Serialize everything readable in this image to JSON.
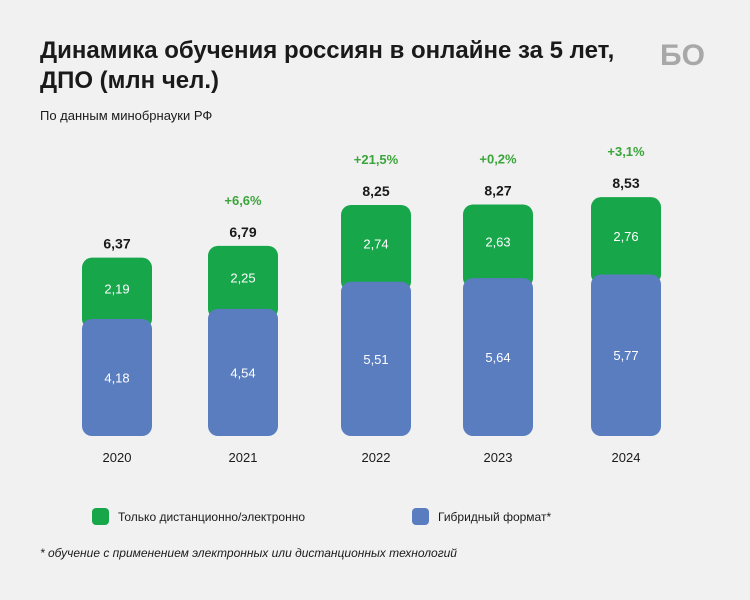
{
  "header": {
    "title": "Динамика обучения россиян в онлайне за 5 лет, ДПО (млн чел.)",
    "subtitle": "По данным минобрнауки РФ",
    "logo": "БО"
  },
  "footnote": "* обучение с применением электронных или дистанционных технологий",
  "colors": {
    "online": "#17a64a",
    "hybrid": "#5a7dc0",
    "change": "#3aa53a",
    "background": "#f1f1f1"
  },
  "chart_data": {
    "type": "bar",
    "stacked": true,
    "categories": [
      "2020",
      "2021",
      "2022",
      "2023",
      "2024"
    ],
    "series": [
      {
        "name": "Гибридный формат*",
        "values": [
          "4,18",
          "4,54",
          "5,51",
          "5,64",
          "5,77"
        ]
      },
      {
        "name": "Только дистанционно/электронно",
        "values": [
          "2,19",
          "2,25",
          "2,74",
          "2,63",
          "2,76"
        ]
      }
    ],
    "totals": [
      "6,37",
      "6,79",
      "8,25",
      "8,27",
      "8,53"
    ],
    "changes": [
      "",
      "+6,6%",
      "+21,5%",
      "+0,2%",
      "+3,1%"
    ],
    "legend_position": "bottom",
    "grid": false
  },
  "legend": {
    "items": [
      {
        "label": "Только дистанционно/электронно",
        "color": "#17a64a"
      },
      {
        "label": "Гибридный формат*",
        "color": "#5a7dc0"
      }
    ]
  }
}
